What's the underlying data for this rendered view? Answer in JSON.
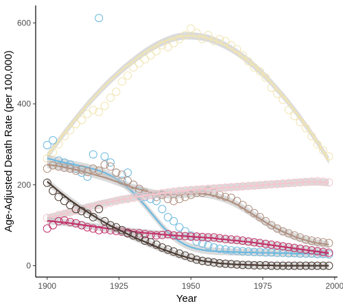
{
  "chart_data": {
    "type": "scatter",
    "title": "",
    "xlabel": "Year",
    "ylabel": "Age-Adjusted Death Rate (per 100,000)",
    "xlim": [
      1896,
      2001
    ],
    "ylim": [
      -28,
      643
    ],
    "x_ticks": [
      1900,
      1925,
      1950,
      1975,
      2000
    ],
    "y_ticks": [
      0,
      200,
      400,
      600
    ],
    "x_tick_labels": [
      "1900",
      "1925",
      "1950",
      "1975",
      "2000"
    ],
    "y_tick_labels": [
      "0",
      "200",
      "400",
      "600"
    ],
    "grid": false,
    "legend": "none",
    "marker": "open-circle",
    "smoothing": "loess-with-confidence-band",
    "series": [
      {
        "color": "#F0E4B0",
        "x": [
          1900,
          1902,
          1904,
          1906,
          1908,
          1910,
          1912,
          1914,
          1916,
          1918,
          1920,
          1922,
          1924,
          1926,
          1928,
          1930,
          1932,
          1934,
          1936,
          1938,
          1940,
          1942,
          1944,
          1946,
          1948,
          1950,
          1952,
          1954,
          1956,
          1958,
          1960,
          1962,
          1964,
          1966,
          1968,
          1970,
          1972,
          1974,
          1976,
          1978,
          1980,
          1982,
          1984,
          1986,
          1988,
          1990,
          1992,
          1994,
          1996,
          1998
        ],
        "y": [
          265,
          280,
          300,
          320,
          335,
          350,
          360,
          375,
          385,
          380,
          395,
          415,
          430,
          455,
          470,
          490,
          500,
          510,
          520,
          530,
          545,
          540,
          550,
          560,
          570,
          586,
          575,
          560,
          570,
          555,
          560,
          555,
          545,
          535,
          520,
          505,
          490,
          480,
          465,
          440,
          425,
          410,
          385,
          370,
          355,
          340,
          320,
          300,
          285,
          270
        ],
        "smooth": [
          270,
          290,
          309,
          328,
          346,
          364,
          381,
          398,
          414,
          429,
          444,
          458,
          471,
          484,
          496,
          507,
          518,
          528,
          537,
          545,
          552,
          558,
          563,
          566,
          568,
          568,
          567,
          565,
          562,
          557,
          551,
          544,
          536,
          527,
          517,
          506,
          494,
          481,
          467,
          452,
          436,
          420,
          403,
          385,
          366,
          346,
          326,
          305,
          283,
          260
        ]
      },
      {
        "color": "#6BB8E0",
        "x": [
          1900,
          1902,
          1904,
          1906,
          1908,
          1910,
          1912,
          1914,
          1916,
          1918,
          1920,
          1922,
          1924,
          1926,
          1928,
          1930,
          1932,
          1934,
          1936,
          1938,
          1940,
          1942,
          1944,
          1946,
          1948,
          1950,
          1952,
          1954,
          1956,
          1958,
          1960,
          1962,
          1964,
          1966,
          1968,
          1970,
          1972,
          1974,
          1976,
          1978,
          1980,
          1982,
          1984,
          1986,
          1988,
          1990,
          1992,
          1994,
          1996,
          1998
        ],
        "y": [
          298,
          310,
          260,
          255,
          250,
          240,
          230,
          220,
          275,
          612,
          270,
          255,
          230,
          210,
          230,
          200,
          185,
          170,
          165,
          160,
          140,
          120,
          110,
          95,
          85,
          75,
          60,
          55,
          50,
          45,
          42,
          40,
          38,
          37,
          36,
          35,
          34,
          34,
          33,
          33,
          32,
          32,
          31,
          31,
          30,
          30,
          30,
          29,
          29,
          28
        ],
        "smooth": [
          265,
          262,
          258,
          255,
          252,
          249,
          246,
          243,
          239,
          235,
          230,
          223,
          215,
          205,
          193,
          180,
          165,
          149,
          132,
          115,
          98,
          83,
          70,
          60,
          52,
          46,
          42,
          39,
          37,
          36,
          35,
          35,
          34,
          34,
          33,
          33,
          33,
          32,
          32,
          32,
          31,
          31,
          31,
          30,
          30,
          30,
          30,
          29,
          29,
          29
        ]
      },
      {
        "color": "#B09080",
        "x": [
          1900,
          1902,
          1904,
          1906,
          1908,
          1910,
          1912,
          1914,
          1916,
          1918,
          1920,
          1922,
          1924,
          1926,
          1928,
          1930,
          1932,
          1934,
          1936,
          1938,
          1940,
          1942,
          1944,
          1946,
          1948,
          1950,
          1952,
          1954,
          1956,
          1958,
          1960,
          1962,
          1964,
          1966,
          1968,
          1970,
          1972,
          1974,
          1976,
          1978,
          1980,
          1982,
          1984,
          1986,
          1988,
          1990,
          1992,
          1994,
          1996,
          1998
        ],
        "y": [
          240,
          248,
          245,
          242,
          240,
          235,
          238,
          232,
          240,
          235,
          250,
          245,
          230,
          225,
          210,
          200,
          190,
          180,
          175,
          170,
          175,
          165,
          160,
          165,
          170,
          175,
          180,
          180,
          185,
          180,
          175,
          170,
          168,
          160,
          150,
          140,
          130,
          120,
          110,
          100,
          92,
          85,
          80,
          75,
          70,
          65,
          62,
          60,
          58,
          56
        ],
        "smooth": [
          250,
          248,
          246,
          243,
          240,
          237,
          234,
          230,
          226,
          222,
          218,
          213,
          208,
          203,
          198,
          193,
          189,
          185,
          181,
          178,
          176,
          175,
          175,
          176,
          177,
          178,
          179,
          178,
          176,
          173,
          169,
          164,
          158,
          151,
          143,
          134,
          125,
          116,
          107,
          99,
          91,
          84,
          78,
          72,
          67,
          63,
          59,
          56,
          54,
          52
        ]
      },
      {
        "color": "#F5C6CE",
        "x": [
          1900,
          1902,
          1904,
          1906,
          1908,
          1910,
          1912,
          1914,
          1916,
          1918,
          1920,
          1922,
          1924,
          1926,
          1928,
          1930,
          1932,
          1934,
          1936,
          1938,
          1940,
          1942,
          1944,
          1946,
          1948,
          1950,
          1952,
          1954,
          1956,
          1958,
          1960,
          1962,
          1964,
          1966,
          1968,
          1970,
          1972,
          1974,
          1976,
          1978,
          1980,
          1982,
          1984,
          1986,
          1988,
          1990,
          1992,
          1994,
          1996,
          1998
        ],
        "y": [
          118,
          120,
          125,
          128,
          132,
          136,
          140,
          142,
          145,
          150,
          152,
          156,
          160,
          163,
          165,
          168,
          170,
          172,
          175,
          177,
          179,
          181,
          183,
          185,
          186,
          187,
          188,
          189,
          190,
          191,
          192,
          193,
          194,
          195,
          196,
          197,
          198,
          199,
          200,
          201,
          202,
          203,
          204,
          205,
          206,
          207,
          208,
          209,
          208,
          206
        ],
        "smooth": [
          118,
          121,
          125,
          129,
          133,
          137,
          141,
          145,
          148,
          152,
          155,
          158,
          161,
          164,
          166,
          169,
          171,
          173,
          175,
          177,
          179,
          181,
          182,
          184,
          185,
          187,
          188,
          189,
          190,
          191,
          192,
          193,
          194,
          195,
          196,
          197,
          198,
          199,
          200,
          201,
          202,
          203,
          204,
          205,
          206,
          207,
          207,
          207,
          206,
          205
        ]
      },
      {
        "color": "#C2306A",
        "x": [
          1900,
          1902,
          1904,
          1906,
          1908,
          1910,
          1912,
          1914,
          1916,
          1918,
          1920,
          1922,
          1924,
          1926,
          1928,
          1930,
          1932,
          1934,
          1936,
          1938,
          1940,
          1942,
          1944,
          1946,
          1948,
          1950,
          1952,
          1954,
          1956,
          1958,
          1960,
          1962,
          1964,
          1966,
          1968,
          1970,
          1972,
          1974,
          1976,
          1978,
          1980,
          1982,
          1984,
          1986,
          1988,
          1990,
          1992,
          1994,
          1996,
          1998
        ],
        "y": [
          92,
          100,
          110,
          112,
          108,
          105,
          100,
          95,
          92,
          88,
          90,
          88,
          86,
          84,
          82,
          80,
          80,
          78,
          76,
          75,
          76,
          78,
          75,
          74,
          73,
          72,
          72,
          71,
          70,
          70,
          68,
          66,
          65,
          64,
          62,
          60,
          58,
          56,
          54,
          52,
          50,
          48,
          46,
          44,
          42,
          40,
          38,
          36,
          34,
          32
        ],
        "smooth": [
          111,
          110,
          108,
          107,
          105,
          103,
          101,
          99,
          97,
          95,
          93,
          91,
          89,
          88,
          86,
          84,
          83,
          81,
          80,
          79,
          77,
          76,
          75,
          74,
          73,
          72,
          71,
          70,
          69,
          68,
          66,
          65,
          63,
          62,
          60,
          59,
          57,
          55,
          53,
          51,
          49,
          47,
          45,
          43,
          41,
          39,
          37,
          35,
          33,
          31
        ]
      },
      {
        "color": "#4A3A32",
        "x": [
          1900,
          1902,
          1904,
          1906,
          1908,
          1910,
          1912,
          1914,
          1916,
          1918,
          1920,
          1922,
          1924,
          1926,
          1928,
          1930,
          1932,
          1934,
          1936,
          1938,
          1940,
          1942,
          1944,
          1946,
          1948,
          1950,
          1952,
          1954,
          1956,
          1958,
          1960,
          1962,
          1964,
          1966,
          1968,
          1970,
          1972,
          1974,
          1976,
          1978,
          1980,
          1982,
          1984,
          1986,
          1988,
          1990,
          1992,
          1994,
          1996,
          1998
        ],
        "y": [
          205,
          185,
          170,
          160,
          150,
          140,
          135,
          128,
          120,
          140,
          110,
          100,
          95,
          88,
          80,
          75,
          70,
          62,
          58,
          52,
          45,
          40,
          35,
          30,
          25,
          20,
          15,
          12,
          10,
          8,
          6,
          5,
          4,
          3,
          2,
          2,
          1,
          1,
          1,
          0,
          0,
          0,
          0,
          0,
          0,
          0,
          0,
          0,
          0,
          0
        ],
        "smooth": [
          208,
          196,
          184,
          173,
          162,
          152,
          142,
          133,
          124,
          115,
          107,
          99,
          92,
          85,
          78,
          71,
          65,
          59,
          53,
          47,
          41,
          36,
          31,
          26,
          22,
          18,
          15,
          12,
          10,
          8,
          6,
          5,
          4,
          3,
          3,
          2,
          2,
          1,
          1,
          1,
          0,
          0,
          0,
          0,
          0,
          0,
          0,
          0,
          0,
          0
        ]
      }
    ]
  }
}
